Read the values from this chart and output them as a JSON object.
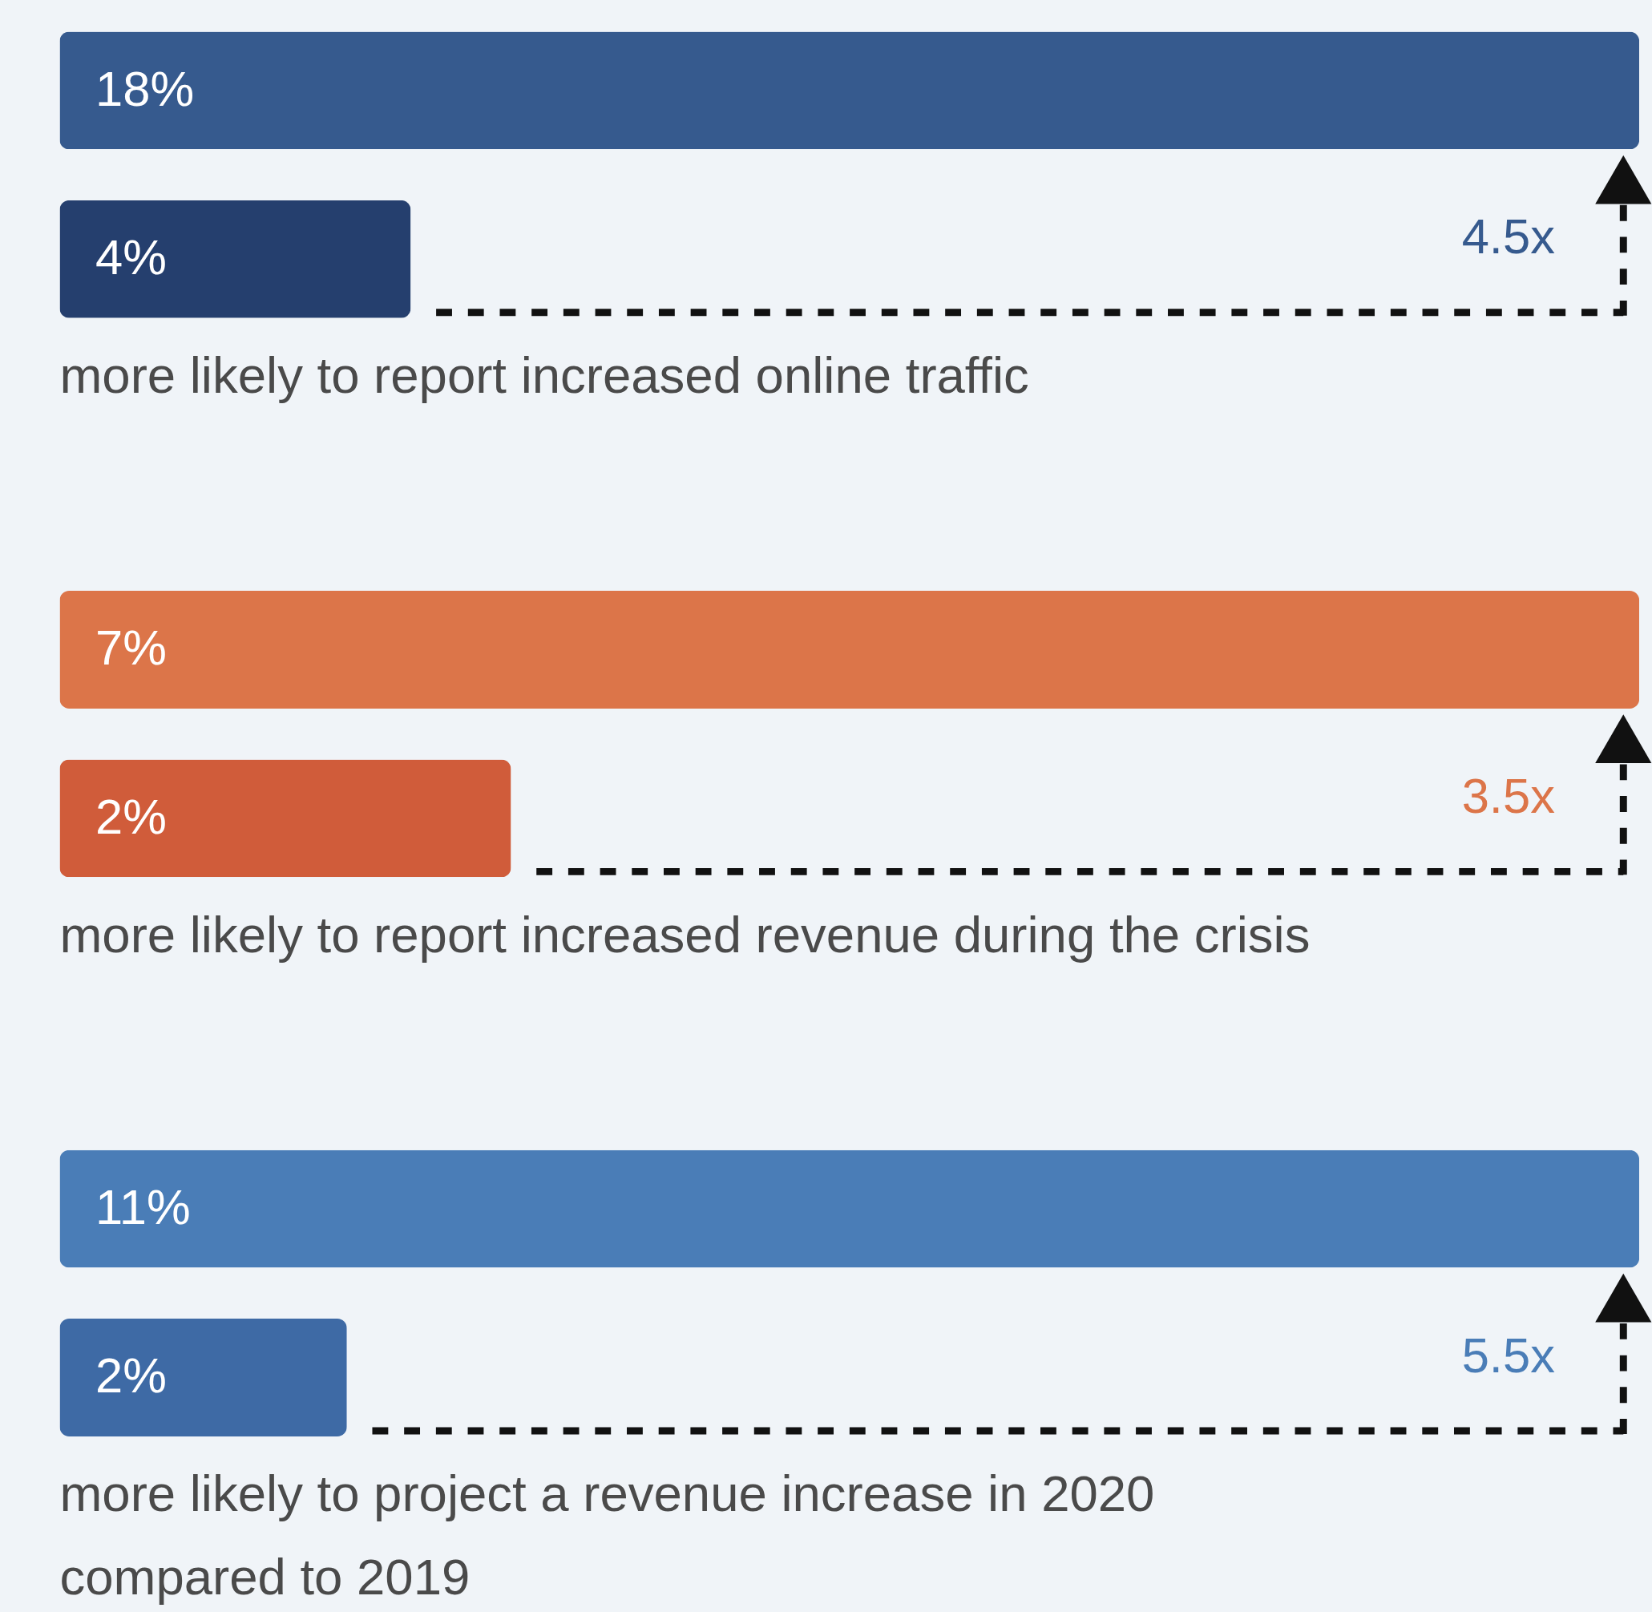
{
  "chart_data": [
    {
      "type": "bar",
      "orientation": "horizontal",
      "categories": [
        null,
        null
      ],
      "values": [
        18,
        4
      ],
      "value_labels": [
        "18%",
        "4%"
      ],
      "colors": [
        "#365a8e",
        "#253f6e"
      ],
      "annotations": [
        "4.5x",
        "more likely to report increased online traffic"
      ]
    },
    {
      "type": "bar",
      "orientation": "horizontal",
      "categories": [
        null,
        null
      ],
      "values": [
        7,
        2
      ],
      "value_labels": [
        "7%",
        "2%"
      ],
      "colors": [
        "#dc7549",
        "#d05c3a"
      ],
      "annotations": [
        "3.5x",
        "more likely to report increased revenue during the crisis"
      ]
    },
    {
      "type": "bar",
      "orientation": "horizontal",
      "categories": [
        null,
        null
      ],
      "values": [
        11,
        2
      ],
      "value_labels": [
        "11%",
        "2%"
      ],
      "colors": [
        "#4a7db7",
        "#3e6aa5"
      ],
      "annotations": [
        "5.5x",
        "more likely to project a revenue increase in 2020 compared to 2019"
      ]
    }
  ]
}
